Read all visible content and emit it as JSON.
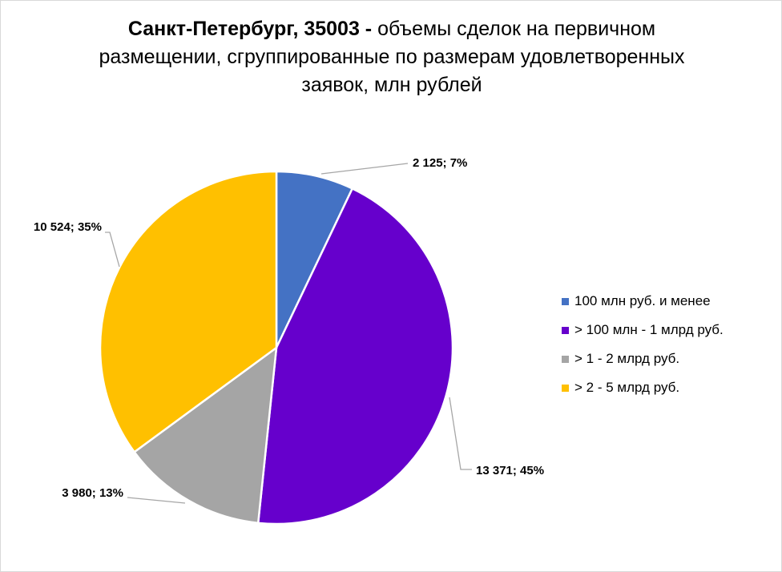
{
  "chart_data": {
    "type": "pie",
    "title_bold": "Санкт-Петербург, 35003 -",
    "title_rest": " объемы сделок на первичном размещении, сгруппированные по размерам удовлетворенных заявок, млн рублей",
    "legend_position": "right",
    "slices": [
      {
        "name": "100 млн руб. и менее",
        "value": 2125,
        "percent": 7,
        "label": "2 125; 7%",
        "color": "#4472C4"
      },
      {
        "name": "> 100 млн - 1 млрд руб.",
        "value": 13371,
        "percent": 45,
        "label": "13 371; 45%",
        "color": "#6600CC"
      },
      {
        "name": "> 1 - 2 млрд руб.",
        "value": 3980,
        "percent": 13,
        "label": "3 980; 13%",
        "color": "#A5A5A5"
      },
      {
        "name": "> 2 - 5 млрд руб.",
        "value": 10524,
        "percent": 35,
        "label": "10 524; 35%",
        "color": "#FFC000"
      }
    ]
  }
}
